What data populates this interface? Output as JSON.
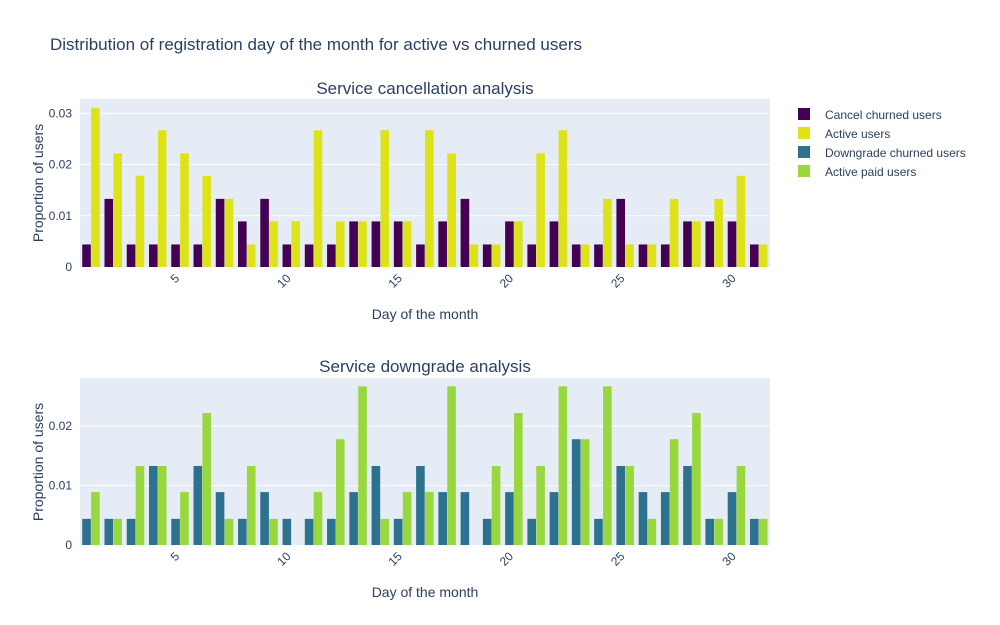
{
  "figure": {
    "title": "Distribution of registration day of the month for active vs churned users"
  },
  "legend": {
    "placement": "top-right",
    "items": [
      {
        "label": "Cancel churned users",
        "color": "#440154"
      },
      {
        "label": "Active users",
        "color": "#dde318"
      },
      {
        "label": "Downgrade churned users",
        "color": "#2c728e"
      },
      {
        "label": "Active paid users",
        "color": "#98d83e"
      }
    ]
  },
  "chart_data": [
    {
      "type": "bar",
      "title": "Service cancellation analysis",
      "xlabel": "Day of the month",
      "ylabel": "Proportion of users",
      "xlim": [
        0.5,
        31.5
      ],
      "ylim": [
        0,
        0.0328
      ],
      "x_ticks": [
        5,
        10,
        15,
        20,
        25,
        30
      ],
      "x_tick_labels": [
        "5",
        "10",
        "15",
        "20",
        "25",
        "30"
      ],
      "y_ticks": [
        0,
        0.01,
        0.02,
        0.03
      ],
      "y_tick_labels": [
        "0",
        "0.01",
        "0.02",
        "0.03"
      ],
      "grid": true,
      "categories": [
        1,
        2,
        3,
        4,
        5,
        6,
        7,
        8,
        9,
        10,
        11,
        12,
        13,
        14,
        15,
        16,
        17,
        18,
        19,
        20,
        21,
        22,
        23,
        24,
        25,
        26,
        27,
        28,
        29,
        30,
        31
      ],
      "series": [
        {
          "name": "Cancel churned users",
          "color": "#440154",
          "values": [
            0.0044,
            0.0133,
            0.0044,
            0.0044,
            0.0044,
            0.0044,
            0.0133,
            0.0089,
            0.0133,
            0.0044,
            0.0044,
            0.0044,
            0.0089,
            0.0089,
            0.0089,
            0.0044,
            0.0089,
            0.0133,
            0.0044,
            0.0089,
            0.0044,
            0.0089,
            0.0044,
            0.0044,
            0.0133,
            0.0044,
            0.0044,
            0.0089,
            0.0089,
            0.0089,
            0.0044
          ]
        },
        {
          "name": "Active users",
          "color": "#dde318",
          "values": [
            0.0311,
            0.0222,
            0.0178,
            0.0267,
            0.0222,
            0.0178,
            0.0133,
            0.0044,
            0.0089,
            0.0089,
            0.0267,
            0.0089,
            0.0089,
            0.0267,
            0.0089,
            0.0267,
            0.0222,
            0.0044,
            0.0044,
            0.0089,
            0.0222,
            0.0267,
            0.0044,
            0.0133,
            0.0044,
            0.0044,
            0.0133,
            0.0089,
            0.0133,
            0.0178,
            0.0044
          ]
        }
      ]
    },
    {
      "type": "bar",
      "title": "Service downgrade analysis",
      "xlabel": "Day of the month",
      "ylabel": "Proportion of users",
      "xlim": [
        0.5,
        31.5
      ],
      "ylim": [
        0,
        0.0281
      ],
      "x_ticks": [
        5,
        10,
        15,
        20,
        25,
        30
      ],
      "x_tick_labels": [
        "5",
        "10",
        "15",
        "20",
        "25",
        "30"
      ],
      "y_ticks": [
        0,
        0.01,
        0.02
      ],
      "y_tick_labels": [
        "0",
        "0.01",
        "0.02"
      ],
      "grid": true,
      "categories": [
        1,
        2,
        3,
        4,
        5,
        6,
        7,
        8,
        9,
        10,
        11,
        12,
        13,
        14,
        15,
        16,
        17,
        18,
        19,
        20,
        21,
        22,
        23,
        24,
        25,
        26,
        27,
        28,
        29,
        30,
        31
      ],
      "series": [
        {
          "name": "Downgrade churned users",
          "color": "#2c728e",
          "values": [
            0.0044,
            0.0044,
            0.0044,
            0.0133,
            0.0044,
            0.0133,
            0.0089,
            0.0044,
            0.0089,
            0.0044,
            0.0044,
            0.0044,
            0.0089,
            0.0133,
            0.0044,
            0.0133,
            0.0089,
            0.0089,
            0.0044,
            0.0089,
            0.0044,
            0.0089,
            0.0178,
            0.0044,
            0.0133,
            0.0089,
            0.0089,
            0.0133,
            0.0044,
            0.0089,
            0.0044
          ]
        },
        {
          "name": "Active paid users",
          "color": "#98d83e",
          "values": [
            0.0089,
            0.0044,
            0.0133,
            0.0133,
            0.0089,
            0.0222,
            0.0044,
            0.0133,
            0.0044,
            0,
            0.0089,
            0.0178,
            0.0267,
            0.0044,
            0.0089,
            0.0089,
            0.0267,
            0,
            0.0133,
            0.0222,
            0.0133,
            0.0267,
            0.0178,
            0.0267,
            0.0133,
            0.0044,
            0.0178,
            0.0222,
            0.0044,
            0.0133,
            0.0044
          ]
        }
      ]
    }
  ]
}
